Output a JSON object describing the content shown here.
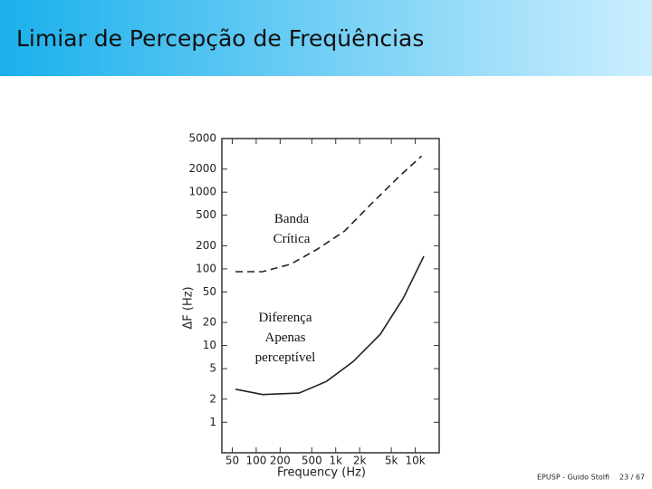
{
  "header": {
    "title": "Limiar de Percepção de Freqüências"
  },
  "footer": {
    "source": "EPUSP - Guido Stolfi",
    "page": "23 / 67"
  },
  "chart_data": {
    "type": "line",
    "xlabel": "Frequency (Hz)",
    "ylabel": "ΔF (Hz)",
    "xscale": "log",
    "yscale": "log",
    "xlim": [
      37,
      20000
    ],
    "ylim": [
      0.4,
      5000
    ],
    "xticks": [
      50,
      100,
      200,
      500,
      {
        "value": 1000,
        "label": "1k"
      },
      {
        "value": 2000,
        "label": "2k"
      },
      {
        "value": 5000,
        "label": "5k"
      },
      {
        "value": 10000,
        "label": "10k"
      }
    ],
    "yticks": [
      1,
      2,
      5,
      10,
      20,
      50,
      100,
      200,
      500,
      1000,
      2000,
      5000
    ],
    "series": [
      {
        "color": "#222222",
        "dash": true,
        "x": [
          55,
          120,
          270,
          590,
          1300,
          2800,
          6200,
          12000
        ],
        "values": [
          92,
          92,
          115,
          181,
          312,
          703,
          1585,
          2955
        ]
      },
      {
        "color": "#222222",
        "dash": false,
        "x": [
          55,
          120,
          345,
          760,
          1660,
          3630,
          7030,
          12800
        ],
        "values": [
          2.7,
          2.3,
          2.4,
          3.4,
          6.2,
          14,
          41,
          146
        ]
      }
    ],
    "annotations": [
      {
        "lines": [
          "Banda",
          "Crítica"
        ]
      },
      {
        "lines": [
          "Diferença",
          "Apenas",
          "perceptível"
        ]
      }
    ]
  }
}
